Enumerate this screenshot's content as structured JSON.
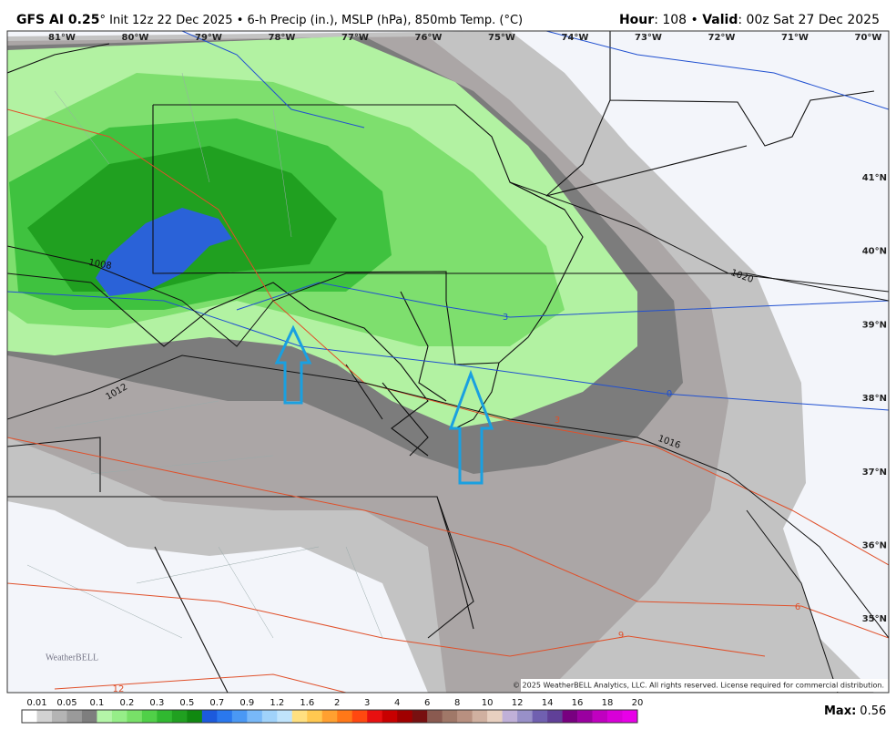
{
  "header": {
    "model": "GFS AI 0.25",
    "title": "° Init 12z 22 Dec 2025 • 6-h Precip (in.), MSLP (hPa), 850mb Temp. (°C)",
    "hour_label": "Hour",
    "hour": ": 108 • ",
    "valid_label": "Valid",
    "valid": ": 00z Sat 27 Dec 2025"
  },
  "map": {
    "longitudes": [
      "81°W",
      "80°W",
      "79°W",
      "78°W",
      "77°W",
      "76°W",
      "75°W",
      "74°W",
      "73°W",
      "72°W",
      "71°W",
      "70°W"
    ],
    "latitudes": [
      "41°N",
      "40°N",
      "39°N",
      "38°N",
      "37°N",
      "36°N",
      "35°N"
    ],
    "isobar_labels": [
      "1008",
      "1012",
      "1016",
      "1020"
    ],
    "temperature_labels": [
      "0",
      "3",
      "3",
      "6",
      "9",
      "12"
    ],
    "logo": "WeatherBELL",
    "copyright": "© 2025 WeatherBELL Analytics, LLC. All rights reserved. License required for commercial distribution."
  },
  "legend": {
    "labels": [
      "0.01",
      "0.05",
      "0.1",
      "0.2",
      "0.3",
      "0.5",
      "0.7",
      "0.9",
      "1.2",
      "1.6",
      "2",
      "3",
      "4",
      "6",
      "8",
      "10",
      "12",
      "14",
      "16",
      "18",
      "20"
    ],
    "colors": [
      "#ffffff",
      "#d2d2d2",
      "#b4b4b4",
      "#9a9a9a",
      "#7e7e7e",
      "#b4f5a8",
      "#96ee88",
      "#78e068",
      "#50d048",
      "#30b830",
      "#20a020",
      "#108810",
      "#1c5adc",
      "#2a78ee",
      "#4a98f4",
      "#78b8f8",
      "#a0d2fa",
      "#c0e4fc",
      "#ffe080",
      "#ffc850",
      "#ffa030",
      "#ff7818",
      "#ff4810",
      "#e81010",
      "#c80000",
      "#a00000",
      "#781010",
      "#8a5a50",
      "#a07868",
      "#b89080",
      "#d0b0a0",
      "#e8d0c0",
      "#c0b0d8",
      "#9890c8",
      "#7060b0",
      "#604098",
      "#780080",
      "#9a00a0",
      "#c000c0",
      "#d800d8",
      "#e800e8"
    ]
  },
  "max": {
    "label": "Max:",
    "value": "0.56"
  }
}
